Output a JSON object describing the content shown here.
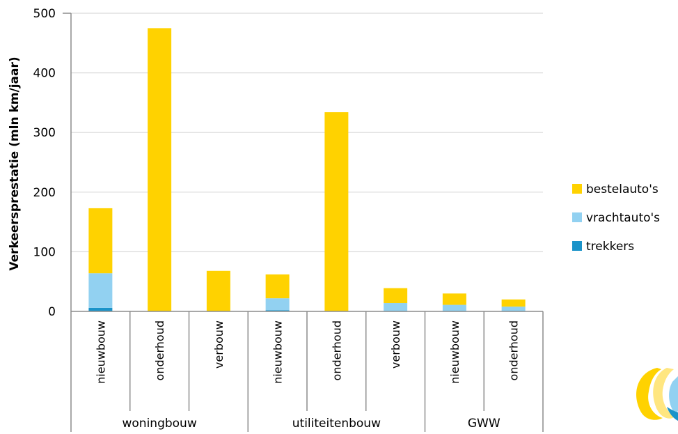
{
  "colors": {
    "trekkers": "#1b93c9",
    "vrachtautos": "#92d1f1",
    "bestelautos": "#ffd200",
    "grid": "#d9d9d9",
    "axis": "#8c8c8c"
  },
  "chart_data": {
    "type": "bar",
    "stacked": true,
    "ylabel": "Verkeersprestatie  (mln km/jaar)",
    "ylim": [
      0,
      500
    ],
    "yticks": [
      0,
      100,
      200,
      300,
      400,
      500
    ],
    "grid": true,
    "legend_position": "right",
    "categories": [
      "nieuwbouw",
      "onderhoud",
      "verbouw",
      "nieuwbouw",
      "onderhoud",
      "verbouw",
      "nieuwbouw",
      "onderhoud"
    ],
    "groups": [
      {
        "label": "woningbouw",
        "span": 3
      },
      {
        "label": "utiliteitenbouw",
        "span": 3
      },
      {
        "label": "GWW",
        "span": 2
      }
    ],
    "series": [
      {
        "name": "trekkers",
        "color_key": "trekkers",
        "values": [
          6,
          0,
          0,
          2,
          0,
          1,
          1,
          1
        ]
      },
      {
        "name": "vrachtauto's",
        "color_key": "vrachtautos",
        "values": [
          58,
          0,
          0,
          20,
          0,
          13,
          10,
          7
        ]
      },
      {
        "name": "bestelauto's",
        "color_key": "bestelautos",
        "values": [
          109,
          475,
          68,
          40,
          334,
          25,
          19,
          12
        ]
      }
    ],
    "legend_order": [
      "bestelauto's",
      "vrachtauto's",
      "trekkers"
    ]
  }
}
